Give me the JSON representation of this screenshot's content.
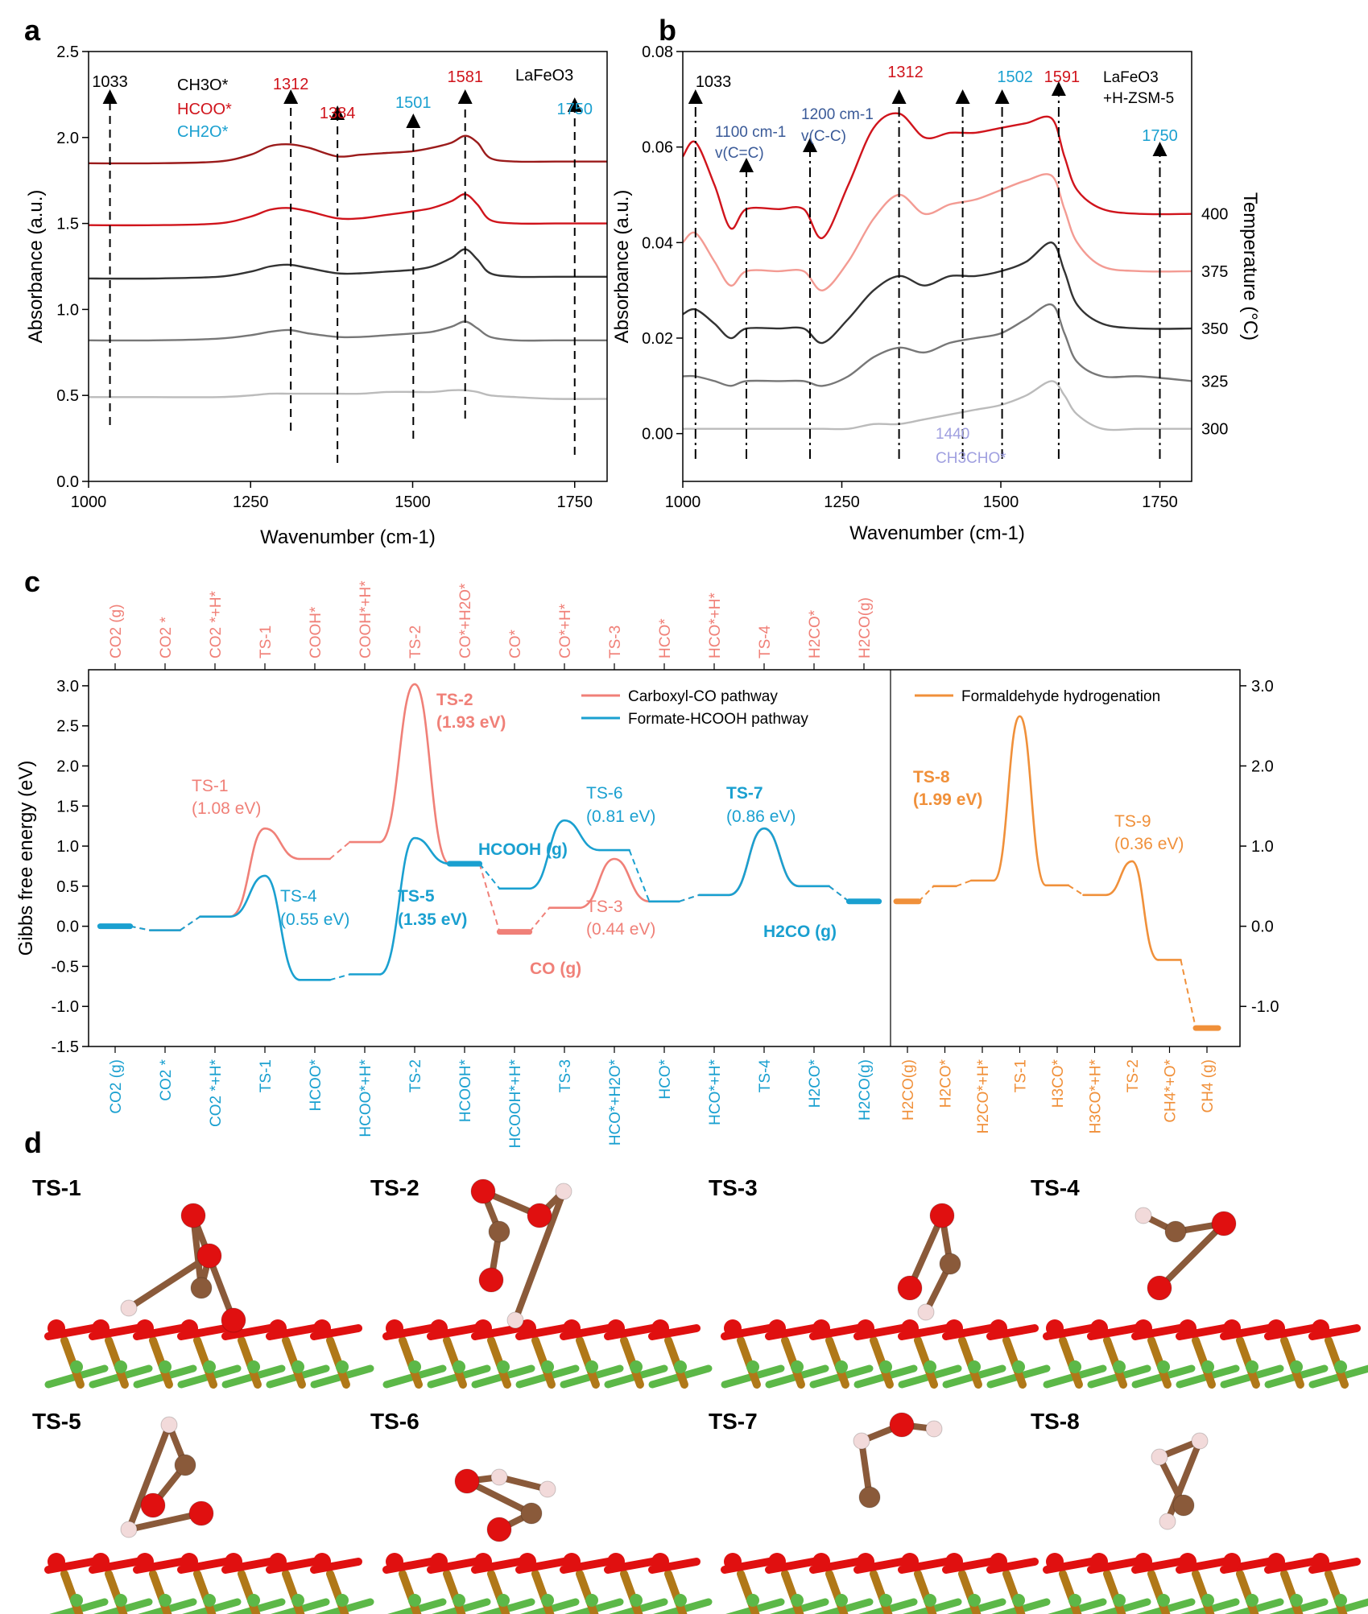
{
  "colors": {
    "red": "#d0141c",
    "darkred": "#9b1b1b",
    "cyan": "#1aa0d0",
    "salmon": "#f08078",
    "orange": "#f0903a",
    "navy": "#3a5a98",
    "lavender": "#a0a0e0",
    "gray": "#777777",
    "lightgray": "#bbbbbb",
    "darkgray": "#333333",
    "pink": "#f39b93"
  },
  "panel_a": {
    "letter": "a",
    "xlabel": "Wavenumber (cm-1)",
    "ylabel": "Absorbance (a.u.)",
    "sample": "LaFeO3",
    "legend": [
      {
        "label": "CH3O*",
        "color": "#000000"
      },
      {
        "label": "HCOO*",
        "color": "#d0141c"
      },
      {
        "label": "CH2O*",
        "color": "#1aa0d0"
      }
    ],
    "peaks": [
      {
        "label": "1033",
        "color": "#000000"
      },
      {
        "label": "1312",
        "color": "#d0141c"
      },
      {
        "label": "1384",
        "color": "#d0141c"
      },
      {
        "label": "1501",
        "color": "#1aa0d0"
      },
      {
        "label": "1581",
        "color": "#d0141c"
      },
      {
        "label": "1750",
        "color": "#1aa0d0"
      }
    ]
  },
  "panel_b": {
    "letter": "b",
    "xlabel": "Wavenumber (cm-1)",
    "ylabel": "Absorbance (a.u.)",
    "y2label": "Temperature (°C)",
    "sample_line1": "LaFeO3",
    "sample_line2": "+H-ZSM-5",
    "peaks": [
      {
        "label": "1033",
        "color": "#000000"
      },
      {
        "label": "1312",
        "color": "#d0141c"
      },
      {
        "label": "1502",
        "color": "#1aa0d0"
      },
      {
        "label": "1591",
        "color": "#d0141c"
      },
      {
        "label": "1750",
        "color": "#1aa0d0"
      }
    ],
    "notes": {
      "n1100a": "1100 cm-1",
      "n1100b": "v(C=C)",
      "n1200a": "1200 cm-1",
      "n1200b": "v(C-C)",
      "n1440a": "1440",
      "n1440b": "CH3CHO*"
    },
    "temps": [
      "400",
      "375",
      "350",
      "325",
      "300"
    ]
  },
  "panel_c": {
    "letter": "c",
    "ylabel": "Gibbs free energy (eV)",
    "legend": [
      "Carboxyl-CO pathway",
      "Formate-HCOOH pathway",
      "Formaldehyde hydrogenation"
    ],
    "top_labels": [
      "CO2 (g)",
      "CO2 *",
      "CO2 *+H*",
      "TS-1",
      "COOH*",
      "COOH*+H*",
      "TS-2",
      "CO*+H2O*",
      "CO*",
      "CO*+H*",
      "TS-3",
      "HCO*",
      "HCO*+H*",
      "TS-4",
      "H2CO*",
      "H2CO(g)"
    ],
    "bottom_labels": [
      "CO2 (g)",
      "CO2 *",
      "CO2 *+H*",
      "TS-1",
      "HCOO*",
      "HCOO*+H*",
      "TS-2",
      "HCOOH*",
      "HCOOH*+H*",
      "TS-3",
      "HCO*+H2O*",
      "HCO*",
      "HCO*+H*",
      "TS-4",
      "H2CO*",
      "H2CO(g)"
    ],
    "bottom_labels_right": [
      "H2CO(g)",
      "H2CO*",
      "H2CO*+H*",
      "TS-1",
      "H3CO*",
      "H3CO*+H*",
      "TS-2",
      "CH4*+O*",
      "CH4 (g)"
    ],
    "annotations": {
      "ts1a": "TS-1",
      "ts1b": "(1.08 eV)",
      "ts2a": "TS-2",
      "ts2b": "(1.93 eV)",
      "ts3a": "TS-3",
      "ts3b": "(0.44 eV)",
      "ts4a": "TS-4",
      "ts4b": "(0.55 eV)",
      "ts5a": "TS-5",
      "ts5b": "(1.35 eV)",
      "ts6a": "TS-6",
      "ts6b": "(0.81 eV)",
      "ts7a": "TS-7",
      "ts7b": "(0.86 eV)",
      "ts8a": "TS-8",
      "ts8b": "(1.99 eV)",
      "ts9a": "TS-9",
      "ts9b": "(0.36 eV)",
      "hcooh": "HCOOH (g)",
      "co": "CO (g)",
      "h2co": "H2CO (g)"
    }
  },
  "panel_d": {
    "letter": "d",
    "labels": [
      "TS-1",
      "TS-2",
      "TS-3",
      "TS-4",
      "TS-5",
      "TS-6",
      "TS-7",
      "TS-8"
    ]
  },
  "chart_data": [
    {
      "type": "line",
      "panel": "a",
      "xlabel": "Wavenumber (cm-1)",
      "ylabel": "Absorbance (a.u.)",
      "xlim": [
        1000,
        1800
      ],
      "ylim": [
        0.0,
        2.5
      ],
      "xticks": [
        1000,
        1250,
        1500,
        1750
      ],
      "yticks": [
        0.0,
        0.5,
        1.0,
        1.5,
        2.0,
        2.5
      ],
      "x": [
        1000,
        1100,
        1200,
        1250,
        1280,
        1310,
        1340,
        1384,
        1420,
        1460,
        1500,
        1530,
        1560,
        1581,
        1600,
        1620,
        1660,
        1720,
        1800
      ],
      "series": [
        {
          "values": [
            1.85,
            1.85,
            1.86,
            1.9,
            1.95,
            1.96,
            1.94,
            1.89,
            1.9,
            1.91,
            1.92,
            1.94,
            1.97,
            2.01,
            1.97,
            1.88,
            1.86,
            1.86,
            1.86
          ]
        },
        {
          "values": [
            1.49,
            1.49,
            1.5,
            1.54,
            1.58,
            1.59,
            1.57,
            1.53,
            1.53,
            1.55,
            1.57,
            1.59,
            1.63,
            1.67,
            1.61,
            1.52,
            1.5,
            1.5,
            1.5
          ]
        },
        {
          "values": [
            1.18,
            1.18,
            1.19,
            1.22,
            1.25,
            1.26,
            1.24,
            1.21,
            1.21,
            1.22,
            1.23,
            1.25,
            1.3,
            1.35,
            1.29,
            1.21,
            1.19,
            1.19,
            1.19
          ]
        },
        {
          "values": [
            0.82,
            0.82,
            0.83,
            0.85,
            0.87,
            0.88,
            0.86,
            0.84,
            0.84,
            0.85,
            0.86,
            0.87,
            0.9,
            0.93,
            0.89,
            0.84,
            0.82,
            0.82,
            0.82
          ]
        },
        {
          "values": [
            0.49,
            0.49,
            0.49,
            0.5,
            0.51,
            0.51,
            0.51,
            0.51,
            0.51,
            0.52,
            0.52,
            0.52,
            0.53,
            0.53,
            0.52,
            0.5,
            0.49,
            0.48,
            0.48
          ]
        }
      ],
      "peak_positions": [
        1033,
        1312,
        1384,
        1501,
        1581,
        1750
      ]
    },
    {
      "type": "line",
      "panel": "b",
      "xlabel": "Wavenumber (cm-1)",
      "ylabel": "Absorbance (a.u.)",
      "y2label": "Temperature (°C)",
      "xlim": [
        1000,
        1800
      ],
      "ylim": [
        -0.01,
        0.08
      ],
      "xticks": [
        1000,
        1250,
        1500,
        1750
      ],
      "yticks": [
        0.0,
        0.02,
        0.04,
        0.06,
        0.08
      ],
      "x": [
        1000,
        1020,
        1050,
        1075,
        1100,
        1150,
        1190,
        1220,
        1260,
        1300,
        1340,
        1380,
        1420,
        1460,
        1500,
        1540,
        1580,
        1600,
        1620,
        1660,
        1720,
        1800
      ],
      "series": [
        {
          "name": "400",
          "values": [
            0.058,
            0.061,
            0.052,
            0.043,
            0.047,
            0.047,
            0.047,
            0.041,
            0.052,
            0.064,
            0.067,
            0.062,
            0.063,
            0.063,
            0.064,
            0.065,
            0.066,
            0.058,
            0.051,
            0.047,
            0.046,
            0.046
          ]
        },
        {
          "name": "375",
          "values": [
            0.04,
            0.042,
            0.036,
            0.031,
            0.034,
            0.034,
            0.034,
            0.03,
            0.036,
            0.045,
            0.05,
            0.046,
            0.048,
            0.049,
            0.051,
            0.053,
            0.054,
            0.047,
            0.04,
            0.035,
            0.034,
            0.034
          ]
        },
        {
          "name": "350",
          "values": [
            0.025,
            0.026,
            0.023,
            0.02,
            0.022,
            0.022,
            0.022,
            0.019,
            0.024,
            0.03,
            0.033,
            0.031,
            0.033,
            0.033,
            0.034,
            0.036,
            0.04,
            0.034,
            0.027,
            0.023,
            0.022,
            0.022
          ]
        },
        {
          "name": "325",
          "values": [
            0.012,
            0.012,
            0.011,
            0.01,
            0.011,
            0.011,
            0.011,
            0.01,
            0.012,
            0.016,
            0.018,
            0.017,
            0.019,
            0.02,
            0.021,
            0.024,
            0.027,
            0.021,
            0.015,
            0.012,
            0.012,
            0.011
          ]
        },
        {
          "name": "300",
          "values": [
            0.001,
            0.001,
            0.001,
            0.001,
            0.001,
            0.001,
            0.001,
            0.001,
            0.001,
            0.002,
            0.002,
            0.003,
            0.004,
            0.005,
            0.006,
            0.008,
            0.011,
            0.008,
            0.004,
            0.001,
            0.001,
            0.001
          ]
        }
      ],
      "peak_positions": [
        1020,
        1100,
        1200,
        1340,
        1440,
        1502,
        1591,
        1750
      ]
    },
    {
      "type": "line",
      "panel": "c",
      "ylabel": "Gibbs free energy (eV)",
      "ylim": [
        -1.5,
        3.2
      ],
      "yticks": [
        -1.5,
        -1.0,
        -0.5,
        0.0,
        0.5,
        1.0,
        1.5,
        2.0,
        2.5,
        3.0
      ],
      "y2lim": [
        -1.5,
        3.2
      ],
      "y2ticks": [
        -1.0,
        0.0,
        1.0,
        2.0,
        3.0
      ],
      "series": [
        {
          "name": "Carboxyl-CO pathway",
          "levels": [
            0.0,
            -0.05,
            0.12,
            1.22,
            0.84,
            1.05,
            3.02,
            0.78,
            -0.07,
            0.23,
            0.84,
            0.31,
            0.39,
            1.22,
            0.5,
            0.31
          ]
        },
        {
          "name": "Formate-HCOOH pathway",
          "levels": [
            0.0,
            -0.05,
            0.12,
            0.63,
            -0.67,
            -0.6,
            1.1,
            0.78,
            0.47,
            1.32,
            0.95,
            0.31,
            0.39,
            1.22,
            0.5,
            0.31
          ]
        },
        {
          "name": "Formaldehyde hydrogenation",
          "levels": [
            0.31,
            0.5,
            0.57,
            2.62,
            0.51,
            0.39,
            0.81,
            -0.42,
            -1.27
          ]
        }
      ]
    }
  ]
}
